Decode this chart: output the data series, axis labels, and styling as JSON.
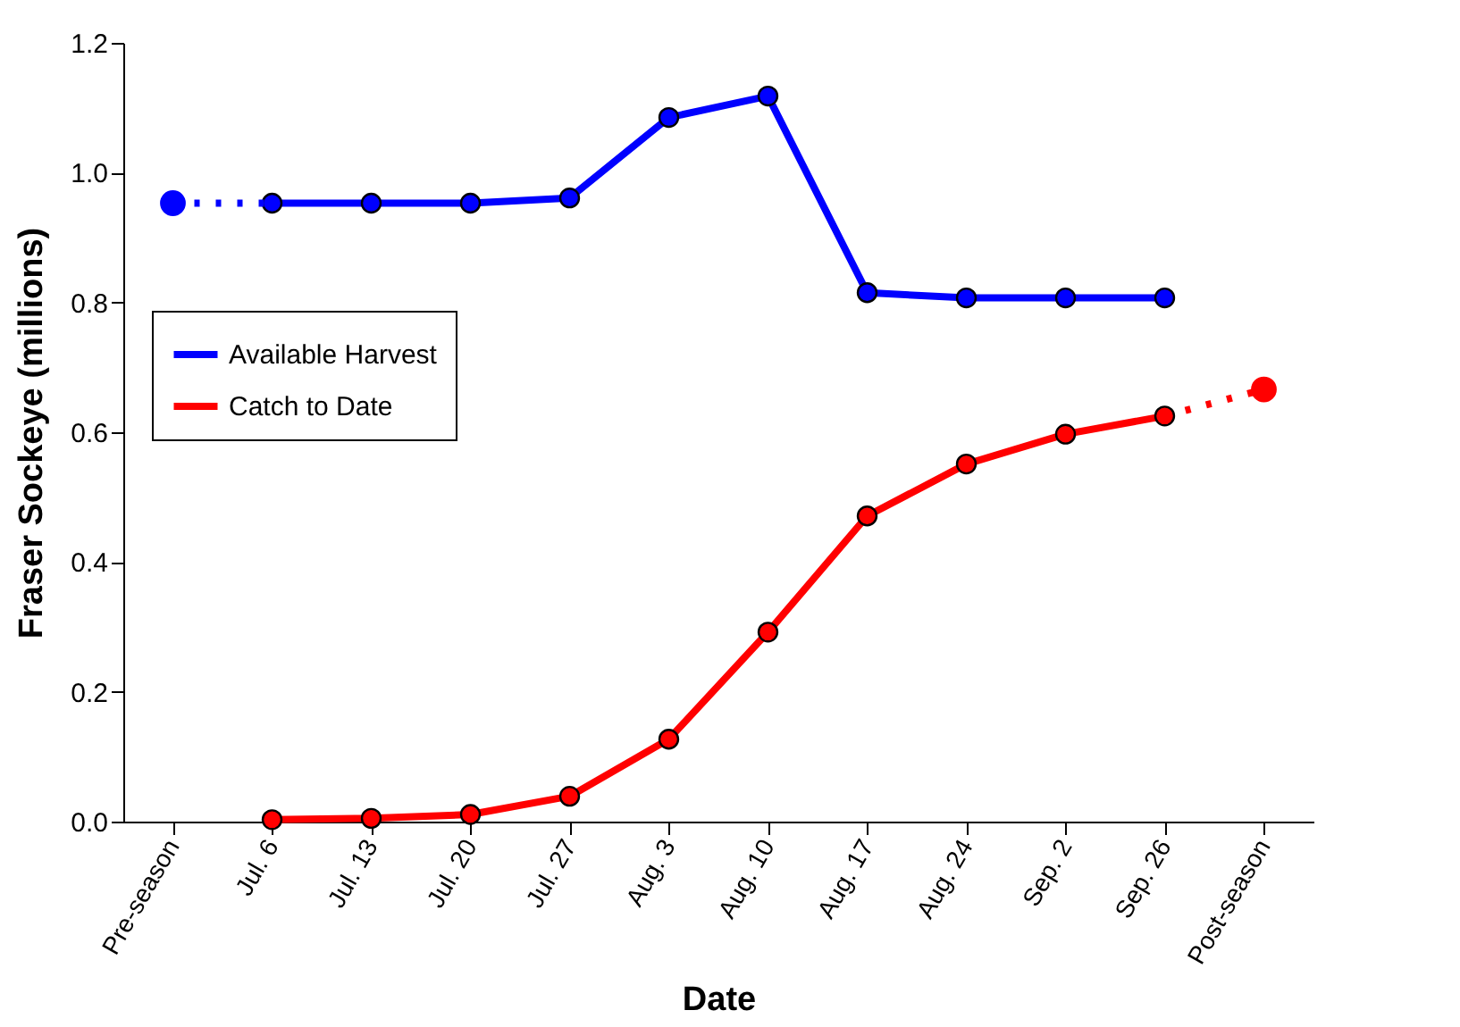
{
  "chart_data": {
    "type": "line",
    "xlabel": "Date",
    "ylabel": "Fraser Sockeye (millions)",
    "categories": [
      "Pre-season",
      "Jul. 6",
      "Jul. 13",
      "Jul. 20",
      "Jul. 27",
      "Aug. 3",
      "Aug. 10",
      "Aug. 17",
      "Aug. 24",
      "Sep. 2",
      "Sep. 26",
      "Post-season"
    ],
    "series": [
      {
        "name": "Available Harvest",
        "color": "#0000ff",
        "marker": "circle",
        "line_style": "solid",
        "values": [
          null,
          0.953,
          0.953,
          0.953,
          0.961,
          1.085,
          1.118,
          0.815,
          0.807,
          0.807,
          0.807,
          null
        ]
      },
      {
        "name": "Catch to Date",
        "color": "#ff0000",
        "marker": "circle",
        "line_style": "solid",
        "values": [
          null,
          0.003,
          0.005,
          0.011,
          0.039,
          0.127,
          0.292,
          0.471,
          0.551,
          0.597,
          0.625,
          null
        ]
      },
      {
        "color": "#0000ff",
        "marker": "none",
        "line_style": "dotted",
        "values": [
          0.953,
          0.953,
          null,
          null,
          null,
          null,
          null,
          null,
          null,
          null,
          null,
          null
        ]
      },
      {
        "color": "#ff0000",
        "marker": "none",
        "line_style": "dotted",
        "values": [
          null,
          null,
          null,
          null,
          null,
          null,
          null,
          null,
          null,
          null,
          0.625,
          0.666
        ]
      },
      {
        "type": "scatter",
        "color": "#0000ff",
        "marker": "circle",
        "values": [
          0.953,
          null,
          null,
          null,
          null,
          null,
          null,
          null,
          null,
          null,
          null,
          null
        ]
      },
      {
        "type": "scatter",
        "color": "#ff0000",
        "marker": "circle",
        "values": [
          null,
          null,
          null,
          null,
          null,
          null,
          null,
          null,
          null,
          null,
          null,
          0.666
        ]
      }
    ],
    "ylim": [
      0,
      1.2
    ],
    "yticks": [
      {
        "value": 0,
        "label": "0.0"
      },
      {
        "value": 0.2,
        "label": "0.2"
      },
      {
        "value": 0.4,
        "label": "0.4"
      },
      {
        "value": 0.6,
        "label": "0.6"
      },
      {
        "value": 0.8,
        "label": "0.8"
      },
      {
        "value": 1,
        "label": "1.0"
      },
      {
        "value": 1.2,
        "label": "1.2"
      }
    ],
    "grid": false,
    "legend": "left"
  }
}
